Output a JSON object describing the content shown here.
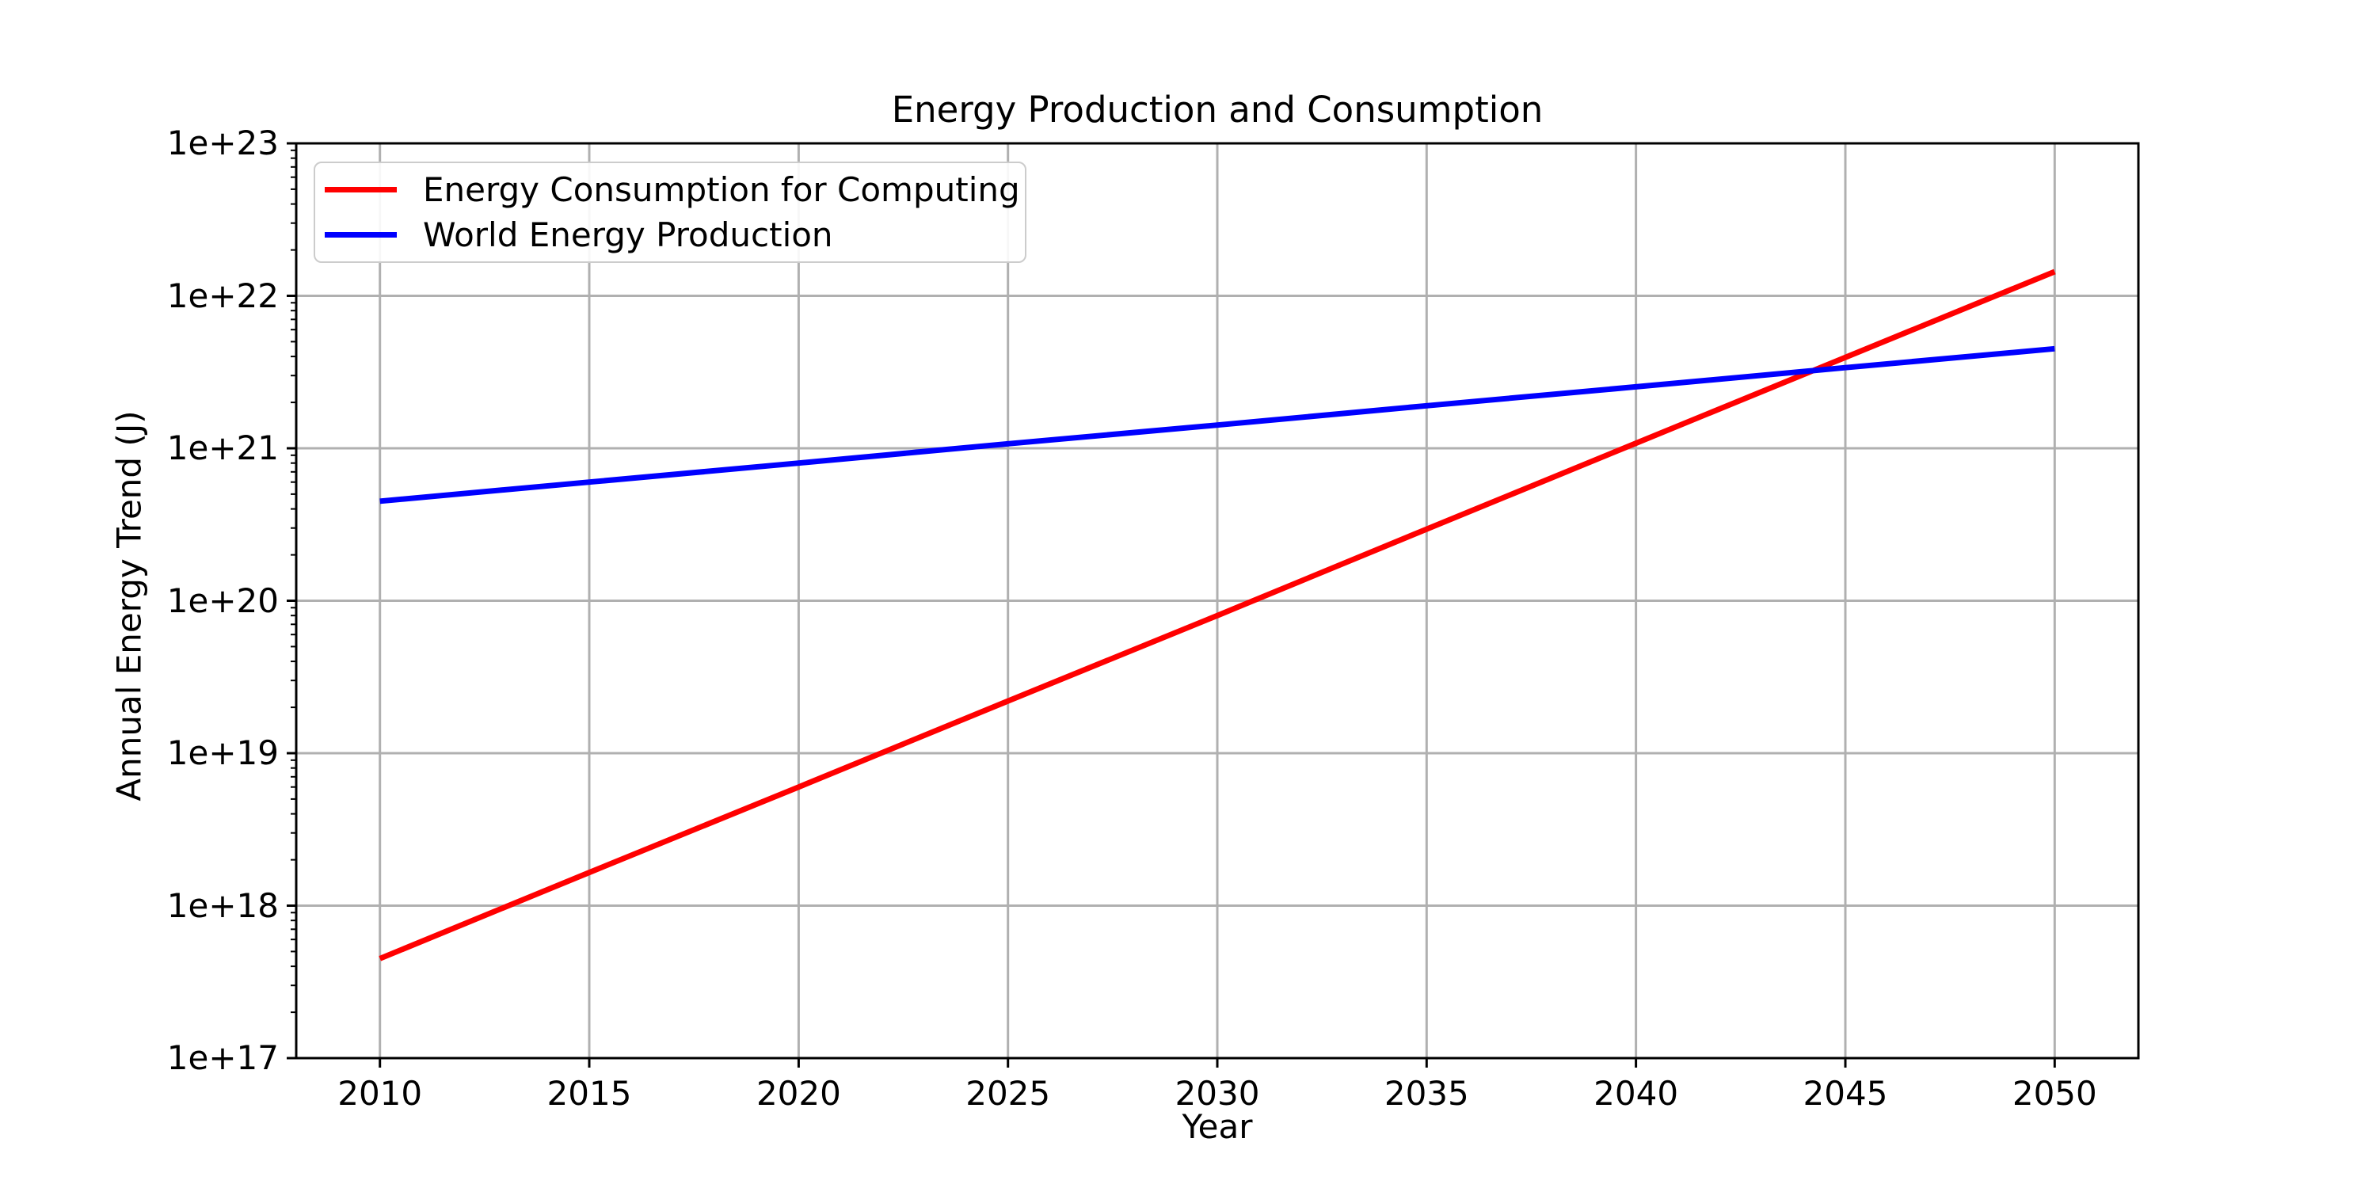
{
  "figure": {
    "title": "Energy Production and Consumption",
    "xlabel": "Year",
    "ylabel": "Annual Energy Trend (J)"
  },
  "legend": {
    "position": "upper left",
    "items": [
      {
        "label": "Energy Consumption for Computing",
        "color": "#ff0000"
      },
      {
        "label": "World Energy Production",
        "color": "#0000ff"
      }
    ]
  },
  "chart_data": {
    "type": "line",
    "title": "Energy Production and Consumption",
    "xlabel": "Year",
    "ylabel": "Annual Energy Trend (J)",
    "yscale": "log",
    "xlim": [
      2008,
      2052
    ],
    "ylim": [
      1e+17,
      1e+23
    ],
    "grid": true,
    "grid_color": "#b0b0b0",
    "spine_color": "#000000",
    "background": "#ffffff",
    "legend_position": "upper left",
    "x_ticks": [
      2010,
      2015,
      2020,
      2025,
      2030,
      2035,
      2040,
      2045,
      2050
    ],
    "y_ticks": [
      {
        "label": "1e+17",
        "value": 1e+17
      },
      {
        "label": "1e+18",
        "value": 1e+18
      },
      {
        "label": "1e+19",
        "value": 1e+19
      },
      {
        "label": "1e+20",
        "value": 1e+20
      },
      {
        "label": "1e+21",
        "value": 1e+21
      },
      {
        "label": "1e+22",
        "value": 1e+22
      },
      {
        "label": "1e+23",
        "value": 1e+23
      }
    ],
    "x": [
      2010,
      2015,
      2020,
      2025,
      2030,
      2035,
      2040,
      2045,
      2050
    ],
    "series": [
      {
        "name": "Energy Consumption for Computing",
        "color": "#ff0000",
        "values": [
          4.5e+17,
          1.65e+18,
          6e+18,
          2.2e+19,
          8e+19,
          2.95e+20,
          1.08e+21,
          3.95e+21,
          1.44e+22
        ]
      },
      {
        "name": "World Energy Production",
        "color": "#0000ff",
        "values": [
          4.5e+20,
          6e+20,
          8e+20,
          1.07e+21,
          1.42e+21,
          1.9e+21,
          2.53e+21,
          3.38e+21,
          4.5e+21
        ]
      }
    ]
  }
}
